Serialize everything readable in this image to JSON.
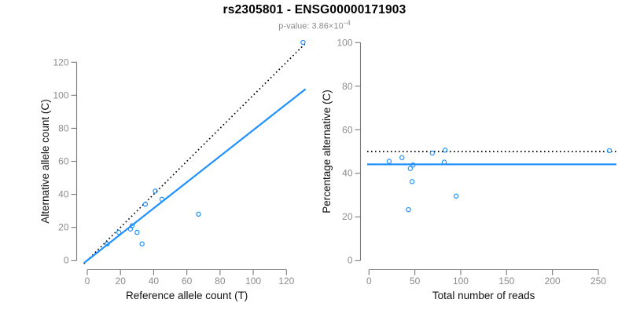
{
  "header": {
    "title": "rs2305801 - ENSG00000171903",
    "pvalue_prefix": "p-value: 3.86×10",
    "pvalue_exponent": "−4"
  },
  "colors": {
    "accent_blue": "#1E90FF",
    "dotted_line": "#000000",
    "axis": "#7a7a7a",
    "tick_label": "#8c8c8c",
    "axis_title": "#111111",
    "subtitle_gray": "#8c8c8c"
  },
  "chart_data": [
    {
      "type": "scatter",
      "panel": "left",
      "xlabel": "Reference allele count (T)",
      "ylabel": "Alternative allele count (C)",
      "xlim": [
        0,
        132
      ],
      "ylim": [
        0,
        134
      ],
      "xticks": [
        0,
        20,
        40,
        60,
        80,
        100,
        120
      ],
      "yticks": [
        0,
        20,
        40,
        60,
        80,
        100,
        120
      ],
      "grid": false,
      "legend": null,
      "points": [
        [
          130,
          132
        ],
        [
          41,
          42
        ],
        [
          45,
          37
        ],
        [
          35,
          34
        ],
        [
          67,
          28
        ],
        [
          27,
          21
        ],
        [
          26,
          19
        ],
        [
          30,
          17
        ],
        [
          19,
          17
        ],
        [
          12,
          10
        ],
        [
          33,
          10
        ]
      ],
      "lines": [
        {
          "name": "identity-line",
          "style": "dotted",
          "color": "black",
          "slope": 1,
          "intercept": 0
        },
        {
          "name": "fit-line",
          "style": "solid",
          "color": "blue",
          "slope": 0.789,
          "intercept": 0
        }
      ]
    },
    {
      "type": "scatter",
      "panel": "right",
      "xlabel": "Total number of reads",
      "ylabel": "Percentage alternative (C)",
      "xlim": [
        0,
        270
      ],
      "ylim": [
        0,
        100
      ],
      "xticks": [
        0,
        50,
        100,
        150,
        200,
        250
      ],
      "yticks": [
        0,
        20,
        40,
        60,
        80,
        100
      ],
      "grid": false,
      "legend": null,
      "points": [
        [
          262,
          50.4
        ],
        [
          83,
          50.6
        ],
        [
          82,
          45.1
        ],
        [
          69,
          49.3
        ],
        [
          95,
          29.5
        ],
        [
          48,
          43.8
        ],
        [
          45,
          42.2
        ],
        [
          47,
          36.2
        ],
        [
          36,
          47.2
        ],
        [
          22,
          45.5
        ],
        [
          43,
          23.3
        ]
      ],
      "lines": [
        {
          "name": "expected-50pct-line",
          "style": "dotted",
          "color": "black",
          "y": 50
        },
        {
          "name": "fit-pct-line",
          "style": "solid",
          "color": "blue",
          "y": 44.1
        }
      ]
    }
  ]
}
